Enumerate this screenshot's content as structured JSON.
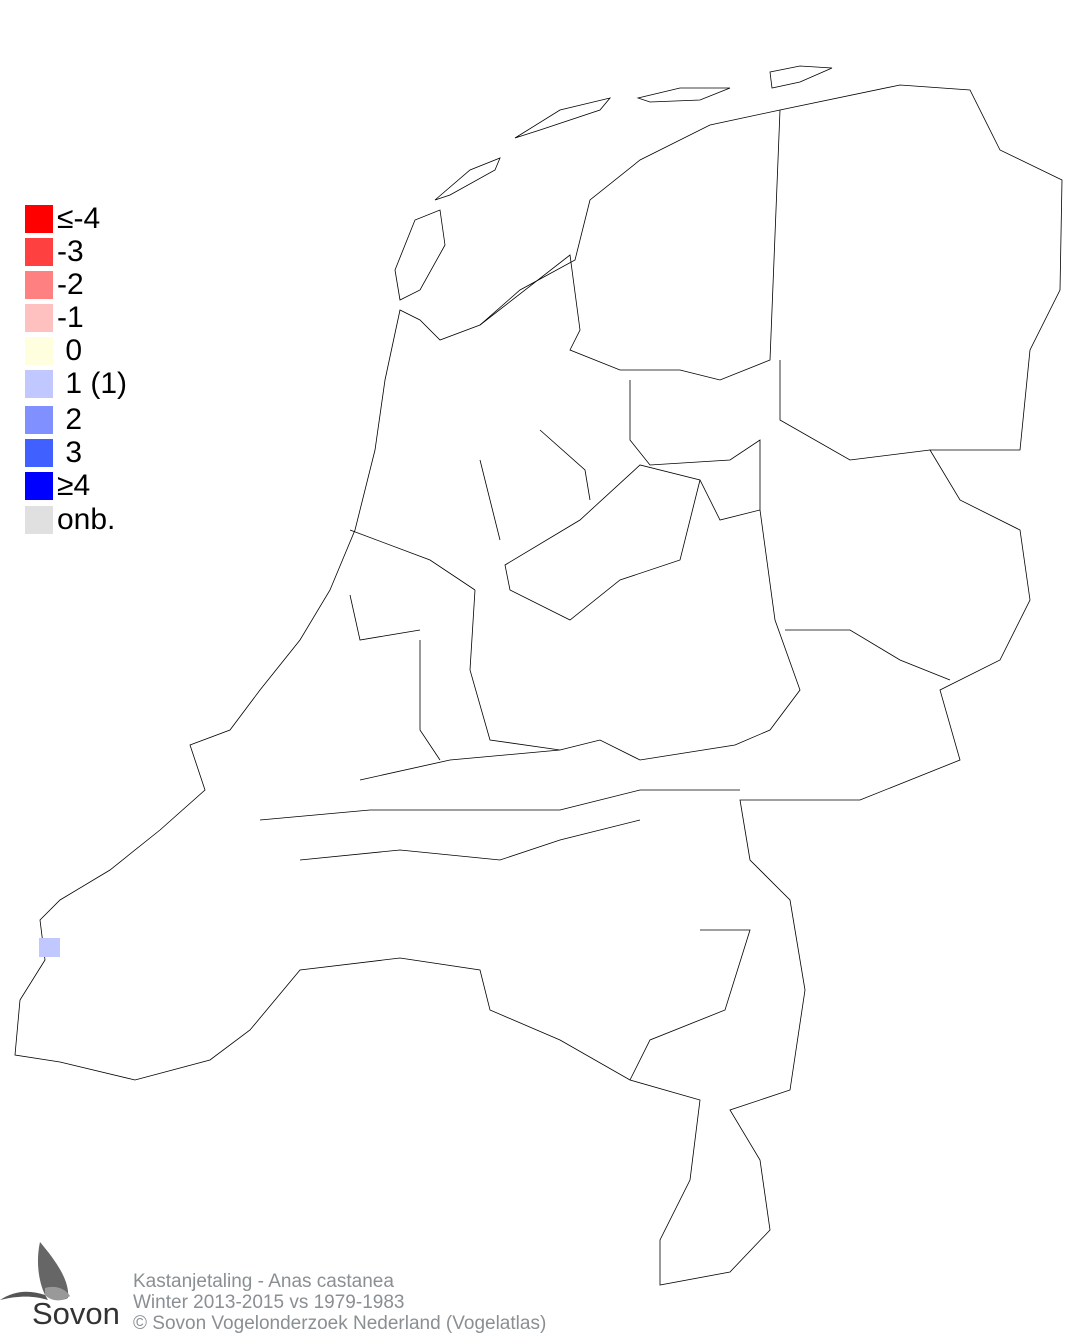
{
  "legend": {
    "items": [
      {
        "label": "≤-4",
        "color": "#ff0000"
      },
      {
        "label": "-3",
        "color": "#ff4040"
      },
      {
        "label": "-2",
        "color": "#ff8080"
      },
      {
        "label": "-1",
        "color": "#ffc0c0"
      },
      {
        "label": " 0",
        "color": "#ffffe0"
      },
      {
        "label": " 1 (1)",
        "color": "#c0c8ff"
      },
      {
        "label": " 2",
        "color": "#8090ff"
      },
      {
        "label": " 3",
        "color": "#4060ff"
      },
      {
        "label": "≥4",
        "color": "#0000ff"
      },
      {
        "label": "onb.",
        "color": "#e0e0e0"
      }
    ]
  },
  "map": {
    "outline_color": "#000000",
    "cells": [
      {
        "class": "1",
        "color": "#c0c8ff"
      }
    ]
  },
  "footer": {
    "species": "Kastanjetaling - Anas castanea",
    "period": "Winter 2013-2015 vs 1979-1983",
    "copyright": "© Sovon Vogelonderzoek Nederland (Vogelatlas)"
  },
  "logo": {
    "text": "Sovon"
  }
}
